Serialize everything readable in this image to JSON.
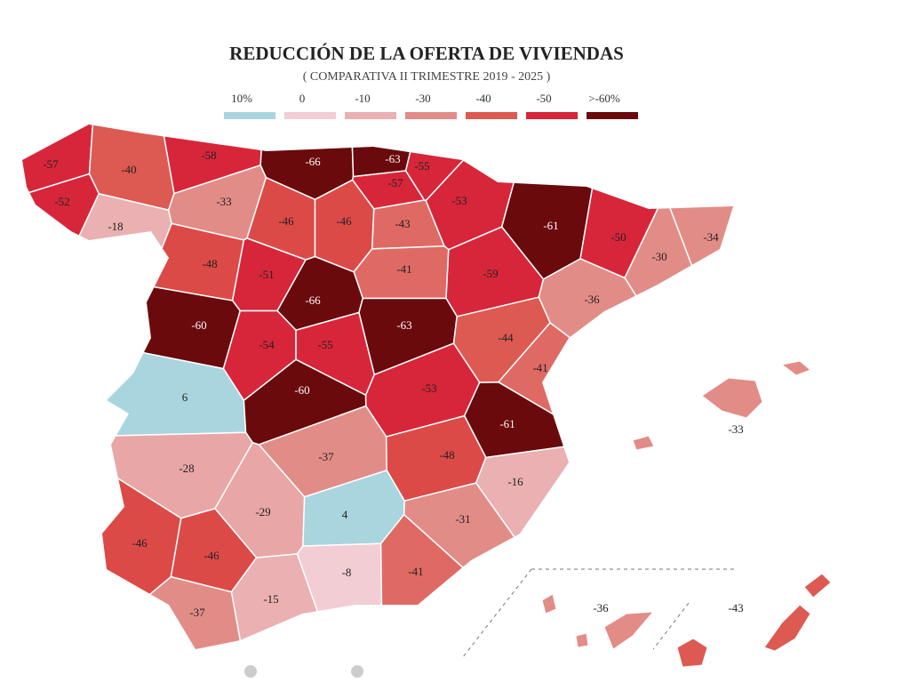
{
  "title": "REDUCCIÓN DE LA OFERTA DE VIVIENDAS",
  "subtitle": "( COMPARATIVA II TRIMESTRE 2019 - 2025 )",
  "legend": [
    {
      "label": "10%",
      "color": "#a9d5df"
    },
    {
      "label": "0",
      "color": "#f2cdd3"
    },
    {
      "label": "-10",
      "color": "#eab0b2"
    },
    {
      "label": "-30",
      "color": "#e28c88"
    },
    {
      "label": "-40",
      "color": "#dc5a52"
    },
    {
      "label": "-50",
      "color": "#d7263a"
    },
    {
      "label": ">-60%",
      "color": "#6a0a0c"
    }
  ],
  "regions": [
    {
      "value": -57,
      "color": "#d7263a"
    },
    {
      "value": -40,
      "color": "#dc5a52"
    },
    {
      "value": -58,
      "color": "#d7263a"
    },
    {
      "value": -66,
      "color": "#6a0a0c"
    },
    {
      "value": -63,
      "color": "#6a0a0c"
    },
    {
      "value": -55,
      "color": "#d7263a"
    },
    {
      "value": -57,
      "color": "#d7263a"
    },
    {
      "value": -53,
      "color": "#d7263a"
    },
    {
      "value": -52,
      "color": "#d7263a"
    },
    {
      "value": -18,
      "color": "#eab0b2"
    },
    {
      "value": -33,
      "color": "#e28c88"
    },
    {
      "value": -46,
      "color": "#dc4a48"
    },
    {
      "value": -46,
      "color": "#dc4a48"
    },
    {
      "value": -43,
      "color": "#df6a64"
    },
    {
      "value": -61,
      "color": "#6a0a0c"
    },
    {
      "value": -50,
      "color": "#d7263a"
    },
    {
      "value": -34,
      "color": "#e28c88"
    },
    {
      "value": -30,
      "color": "#e28c88"
    },
    {
      "value": -48,
      "color": "#dc4a48"
    },
    {
      "value": -51,
      "color": "#d7263a"
    },
    {
      "value": -41,
      "color": "#df6a64"
    },
    {
      "value": -59,
      "color": "#d7263a"
    },
    {
      "value": -66,
      "color": "#6a0a0c"
    },
    {
      "value": -36,
      "color": "#e28c88"
    },
    {
      "value": -60,
      "color": "#6a0a0c"
    },
    {
      "value": -63,
      "color": "#6a0a0c"
    },
    {
      "value": -54,
      "color": "#d7263a"
    },
    {
      "value": -55,
      "color": "#d7263a"
    },
    {
      "value": -44,
      "color": "#dc5a52"
    },
    {
      "value": -41,
      "color": "#df6a64"
    },
    {
      "value": 6,
      "color": "#a9d5df"
    },
    {
      "value": -60,
      "color": "#6a0a0c"
    },
    {
      "value": -53,
      "color": "#d7263a"
    },
    {
      "value": -61,
      "color": "#6a0a0c"
    },
    {
      "value": -33,
      "color": "#e28c88"
    },
    {
      "value": -37,
      "color": "#e28c88"
    },
    {
      "value": -48,
      "color": "#dc4a48"
    },
    {
      "value": -28,
      "color": "#e8a6a6"
    },
    {
      "value": -16,
      "color": "#eab0b2"
    },
    {
      "value": -29,
      "color": "#e8a6a6"
    },
    {
      "value": 4,
      "color": "#a9d5df"
    },
    {
      "value": -31,
      "color": "#e28c88"
    },
    {
      "value": -46,
      "color": "#dc4a48"
    },
    {
      "value": -46,
      "color": "#dc4a48"
    },
    {
      "value": -8,
      "color": "#f2cdd3"
    },
    {
      "value": -41,
      "color": "#df6a64"
    },
    {
      "value": -15,
      "color": "#eab0b2"
    },
    {
      "value": -37,
      "color": "#e28c88"
    },
    {
      "value": -36,
      "color": "#e28c88"
    },
    {
      "value": -43,
      "color": "#dc5a52"
    }
  ]
}
